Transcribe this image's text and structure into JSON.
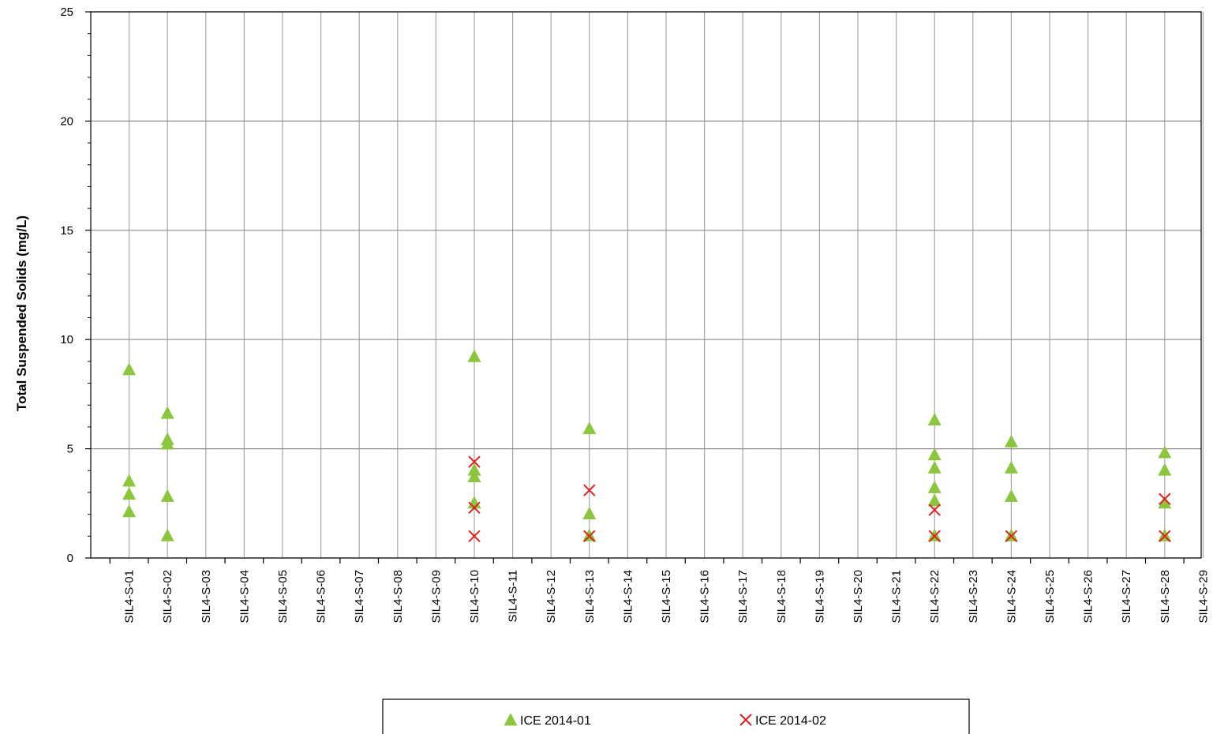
{
  "chart_data": {
    "type": "scatter",
    "ylabel": "Total Suspended Solids (mg/L)",
    "xlabel": "",
    "ylim": [
      0,
      25
    ],
    "yticks": [
      0,
      5,
      10,
      15,
      20,
      25
    ],
    "grid": true,
    "legend_position": "bottom",
    "categories": [
      "SIL4-S-01",
      "SIL4-S-02",
      "SIL4-S-03",
      "SIL4-S-04",
      "SIL4-S-05",
      "SIL4-S-06",
      "SIL4-S-07",
      "SIL4-S-08",
      "SIL4-S-09",
      "SIL4-S-10",
      "SIL4-S-11",
      "SIL4-S-12",
      "SIL4-S-13",
      "SIL4-S-14",
      "SIL4-S-15",
      "SIL4-S-16",
      "SIL4-S-17",
      "SIL4-S-18",
      "SIL4-S-19",
      "SIL4-S-20",
      "SIL4-S-21",
      "SIL4-S-22",
      "SIL4-S-23",
      "SIL4-S-24",
      "SIL4-S-25",
      "SIL4-S-26",
      "SIL4-S-27",
      "SIL4-S-28",
      "SIL4-S-29"
    ],
    "series": [
      {
        "name": "ICE 2014-01",
        "marker": "triangle",
        "color": "#8cc63f",
        "points": [
          {
            "x": "SIL4-S-01",
            "y": 8.6
          },
          {
            "x": "SIL4-S-01",
            "y": 3.5
          },
          {
            "x": "SIL4-S-01",
            "y": 2.9
          },
          {
            "x": "SIL4-S-01",
            "y": 2.1
          },
          {
            "x": "SIL4-S-02",
            "y": 6.6
          },
          {
            "x": "SIL4-S-02",
            "y": 5.4
          },
          {
            "x": "SIL4-S-02",
            "y": 5.2
          },
          {
            "x": "SIL4-S-02",
            "y": 2.8
          },
          {
            "x": "SIL4-S-02",
            "y": 1.0
          },
          {
            "x": "SIL4-S-10",
            "y": 9.2
          },
          {
            "x": "SIL4-S-10",
            "y": 4.0
          },
          {
            "x": "SIL4-S-10",
            "y": 3.7
          },
          {
            "x": "SIL4-S-10",
            "y": 2.5
          },
          {
            "x": "SIL4-S-13",
            "y": 5.9
          },
          {
            "x": "SIL4-S-13",
            "y": 2.0
          },
          {
            "x": "SIL4-S-13",
            "y": 1.0
          },
          {
            "x": "SIL4-S-22",
            "y": 6.3
          },
          {
            "x": "SIL4-S-22",
            "y": 4.7
          },
          {
            "x": "SIL4-S-22",
            "y": 4.1
          },
          {
            "x": "SIL4-S-22",
            "y": 3.2
          },
          {
            "x": "SIL4-S-22",
            "y": 2.6
          },
          {
            "x": "SIL4-S-22",
            "y": 1.0
          },
          {
            "x": "SIL4-S-24",
            "y": 5.3
          },
          {
            "x": "SIL4-S-24",
            "y": 4.1
          },
          {
            "x": "SIL4-S-24",
            "y": 2.8
          },
          {
            "x": "SIL4-S-24",
            "y": 1.0
          },
          {
            "x": "SIL4-S-28",
            "y": 4.8
          },
          {
            "x": "SIL4-S-28",
            "y": 4.0
          },
          {
            "x": "SIL4-S-28",
            "y": 2.5
          },
          {
            "x": "SIL4-S-28",
            "y": 1.0
          }
        ]
      },
      {
        "name": "ICE 2014-02",
        "marker": "x",
        "color": "#dd2222",
        "points": [
          {
            "x": "SIL4-S-10",
            "y": 4.4
          },
          {
            "x": "SIL4-S-10",
            "y": 2.3
          },
          {
            "x": "SIL4-S-10",
            "y": 1.0
          },
          {
            "x": "SIL4-S-13",
            "y": 3.1
          },
          {
            "x": "SIL4-S-13",
            "y": 1.0
          },
          {
            "x": "SIL4-S-22",
            "y": 2.2
          },
          {
            "x": "SIL4-S-22",
            "y": 1.0
          },
          {
            "x": "SIL4-S-24",
            "y": 1.0
          },
          {
            "x": "SIL4-S-28",
            "y": 2.7
          },
          {
            "x": "SIL4-S-28",
            "y": 1.0
          }
        ]
      }
    ]
  }
}
